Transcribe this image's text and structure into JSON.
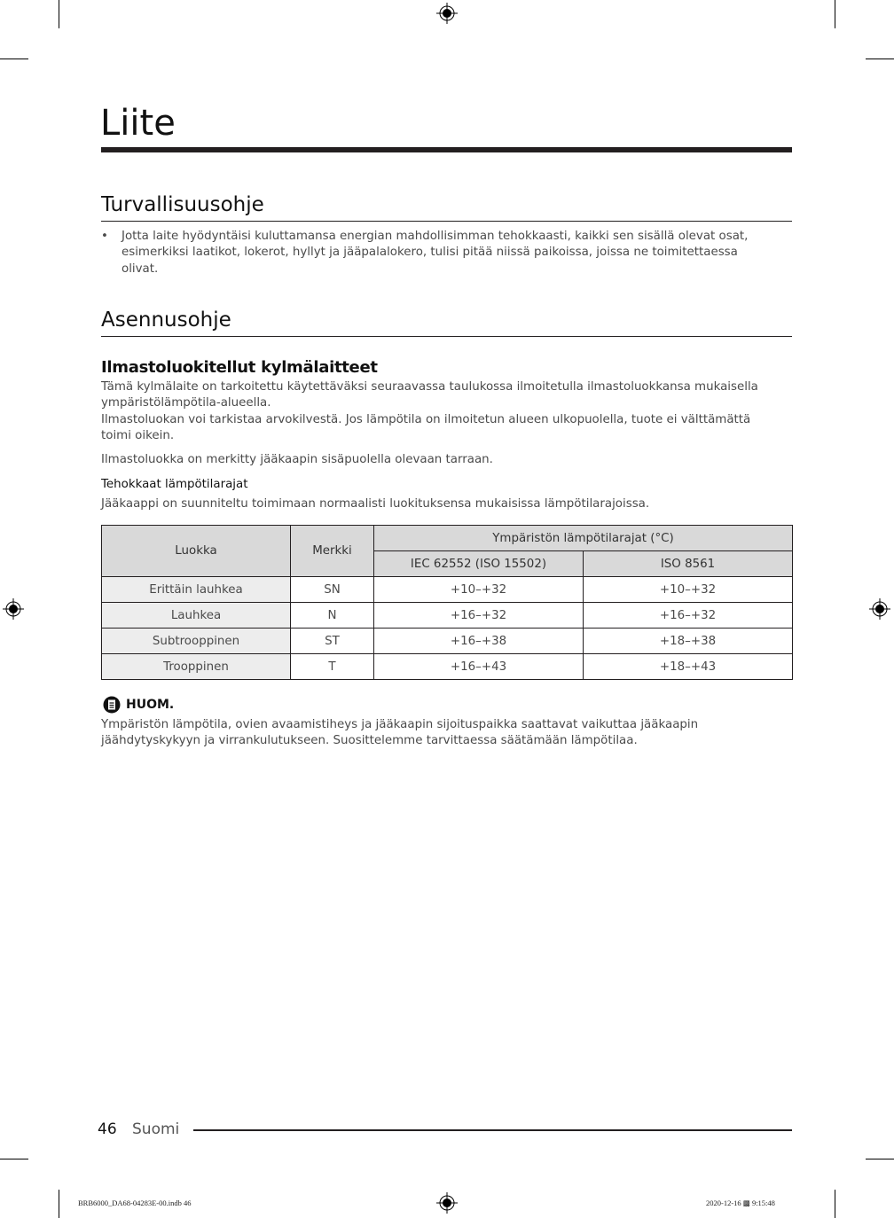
{
  "page": {
    "title": "Liite",
    "sections": {
      "safety": {
        "heading": "Turvallisuusohje",
        "bullets": [
          "Jotta laite hyödyntäisi kuluttamansa energian mahdollisimman tehokkaasti, kaikki sen sisällä olevat osat, esimerkiksi laatikot, lokerot, hyllyt ja jääpalalokero, tulisi pitää niissä paikoissa, joissa ne toimitettaessa olivat."
        ]
      },
      "install": {
        "heading": "Asennusohje",
        "subheading": "Ilmastoluokitellut kylmälaitteet",
        "para1": "Tämä kylmälaite on tarkoitettu käytettäväksi seuraavassa taulukossa ilmoitetulla ilmastoluokkansa mukaisella ympäristölämpötila-alueella.",
        "para2": "Ilmastoluokan voi tarkistaa arvokilvestä. Jos lämpötila on ilmoitetun alueen ulkopuolella, tuote ei välttämättä toimi oikein.",
        "para3": "Ilmastoluokka on merkitty jääkaapin sisäpuolella olevaan tarraan.",
        "limits_heading": "Tehokkaat lämpötilarajat",
        "limits_text": "Jääkaappi on suunniteltu toimimaan normaalisti luokituksensa mukaisissa lämpötilarajoissa."
      }
    },
    "table": {
      "headers": {
        "class": "Luokka",
        "symbol": "Merkki",
        "range": "Ympäristön lämpötilarajat (°C)",
        "iec": "IEC 62552 (ISO 15502)",
        "iso": "ISO 8561"
      },
      "rows": [
        {
          "class": "Erittäin lauhkea",
          "symbol": "SN",
          "iec": "+10–+32",
          "iso": "+10–+32"
        },
        {
          "class": "Lauhkea",
          "symbol": "N",
          "iec": "+16–+32",
          "iso": "+16–+32"
        },
        {
          "class": "Subtrooppinen",
          "symbol": "ST",
          "iec": "+16–+38",
          "iso": "+18–+38"
        },
        {
          "class": "Trooppinen",
          "symbol": "T",
          "iec": "+16–+43",
          "iso": "+18–+43"
        }
      ]
    },
    "note": {
      "icon": "note-icon",
      "label": "HUOM.",
      "text": "Ympäristön lämpötila, ovien avaamistiheys ja jääkaapin sijoituspaikka saattavat vaikuttaa jääkaapin jäähdytyskykyyn ja virrankulutukseen. Suosittelemme tarvittaessa säätämään lämpötilaa."
    },
    "footer": {
      "page_number": "46",
      "language": "Suomi"
    },
    "slug": {
      "file": "BRB6000_DA68-04283E-00.indb   46",
      "timestamp": "2020-12-16   ▩ 9:15:48"
    }
  }
}
